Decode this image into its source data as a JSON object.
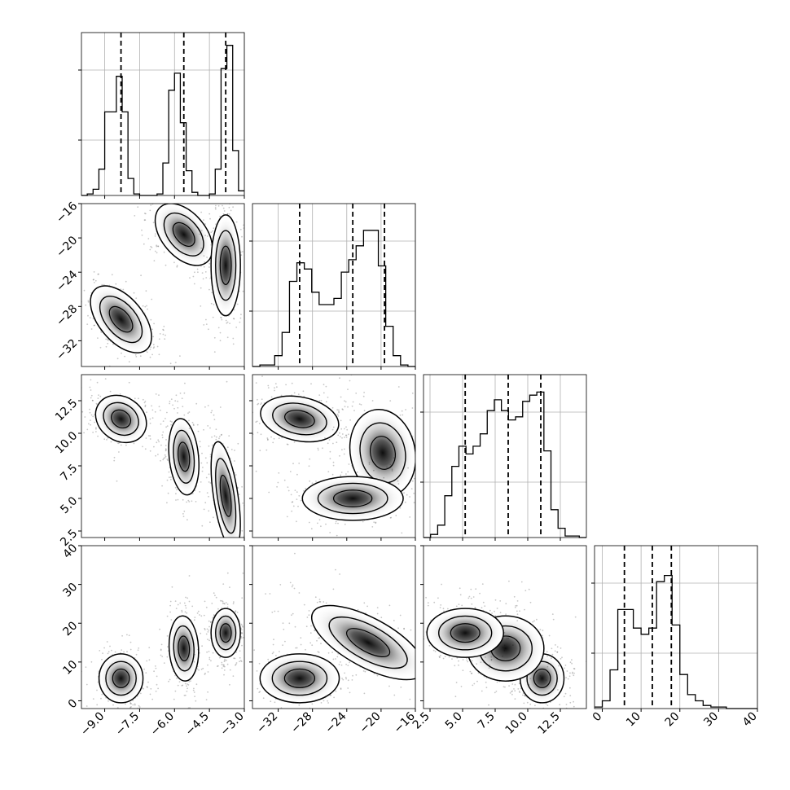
{
  "chart_data": {
    "type": "corner",
    "variables": [
      {
        "range": [
          -10,
          -3
        ],
        "ticks": [
          -9.0,
          -7.5,
          -6.0,
          -4.5,
          -3.0
        ],
        "tick_labels": [
          "−9.0",
          "−7.5",
          "−6.0",
          "−4.5",
          "−3.0"
        ],
        "quantiles": [
          -8.3,
          -5.6,
          -3.8
        ]
      },
      {
        "range": [
          -35,
          -16
        ],
        "ticks": [
          -32,
          -28,
          -24,
          -20,
          -16
        ],
        "tick_labels": [
          "−32",
          "−28",
          "−24",
          "−20",
          "−16"
        ],
        "quantiles": [
          -29.5,
          -23.3,
          -19.6
        ]
      },
      {
        "range": [
          2,
          14.5
        ],
        "ticks": [
          2.5,
          5.0,
          7.5,
          10.0,
          12.5
        ],
        "tick_labels": [
          "2.5",
          "5.0",
          "7.5",
          "10.0",
          "12.5"
        ],
        "quantiles": [
          5.2,
          8.5,
          11.0
        ]
      },
      {
        "range": [
          -2,
          40
        ],
        "ticks": [
          0,
          10,
          20,
          30,
          40
        ],
        "tick_labels": [
          "0",
          "10",
          "20",
          "30",
          "40"
        ],
        "quantiles": [
          5.7,
          12.9,
          17.8
        ]
      }
    ],
    "histograms": [
      {
        "var": 0,
        "edges_range": [
          -10,
          -3
        ],
        "counts": [
          0,
          0.01,
          0.04,
          0.17,
          0.54,
          0.54,
          0.77,
          0.54,
          0.11,
          0.01,
          0,
          0,
          0,
          0.01,
          0.21,
          0.68,
          0.79,
          0.47,
          0.16,
          0.02,
          0,
          0,
          0.01,
          0.17,
          0.82,
          0.97,
          0.29,
          0.03
        ],
        "max": 1.0
      },
      {
        "var": 1,
        "edges_range": [
          -35,
          -16
        ],
        "counts": [
          0,
          0.01,
          0.01,
          0.07,
          0.22,
          0.55,
          0.67,
          0.63,
          0.48,
          0.4,
          0.4,
          0.44,
          0.61,
          0.69,
          0.78,
          0.88,
          0.88,
          0.65,
          0.26,
          0.07,
          0.01,
          0
        ],
        "max": 1.0
      },
      {
        "var": 2,
        "edges_range": [
          2,
          14.5
        ],
        "counts": [
          0,
          0.02,
          0.08,
          0.27,
          0.46,
          0.59,
          0.54,
          0.59,
          0.67,
          0.82,
          0.89,
          0.82,
          0.76,
          0.78,
          0.88,
          0.92,
          0.94,
          0.56,
          0.18,
          0.06,
          0.01,
          0.01,
          0
        ],
        "max": 1.0
      },
      {
        "var": 3,
        "edges_range": [
          -2,
          40
        ],
        "counts": [
          0.01,
          0.05,
          0.25,
          0.64,
          0.64,
          0.52,
          0.48,
          0.52,
          0.82,
          0.86,
          0.54,
          0.22,
          0.09,
          0.05,
          0.02,
          0.01,
          0.01,
          0,
          0,
          0,
          0
        ],
        "max": 1.0
      }
    ],
    "hist_yticks": [
      0.34,
      0.77
    ],
    "clusters_2d": [
      {
        "row": 1,
        "col": 0,
        "blobs": [
          {
            "mx": -8.3,
            "my": -29.5,
            "sx": 0.45,
            "sy": 2.2,
            "rot": 0.7
          },
          {
            "mx": -5.6,
            "my": -19.6,
            "sx": 0.45,
            "sy": 2.0,
            "rot": 0.7
          },
          {
            "mx": -3.8,
            "my": -23.2,
            "sx": 0.3,
            "sy": 2.8,
            "rot": 0.0
          }
        ]
      },
      {
        "row": 2,
        "col": 0,
        "blobs": [
          {
            "mx": -8.3,
            "my": 11.1,
            "sx": 0.55,
            "sy": 0.8,
            "rot": -0.6
          },
          {
            "mx": -5.6,
            "my": 8.2,
            "sx": 0.3,
            "sy": 1.4,
            "rot": 0.1
          },
          {
            "mx": -3.8,
            "my": 5.2,
            "sx": 0.25,
            "sy": 2.0,
            "rot": 0.15
          }
        ]
      },
      {
        "row": 2,
        "col": 1,
        "blobs": [
          {
            "mx": -29.5,
            "my": 11.1,
            "sx": 2.2,
            "sy": 0.8,
            "rot": -0.2
          },
          {
            "mx": -19.8,
            "my": 8.5,
            "sx": 1.8,
            "sy": 1.6,
            "rot": 0.2
          },
          {
            "mx": -23.3,
            "my": 5.0,
            "sx": 2.8,
            "sy": 0.8,
            "rot": 0.0
          }
        ]
      },
      {
        "row": 3,
        "col": 0,
        "blobs": [
          {
            "mx": -8.3,
            "my": 5.8,
            "sx": 0.45,
            "sy": 3.0,
            "rot": 0.0
          },
          {
            "mx": -5.6,
            "my": 13.5,
            "sx": 0.3,
            "sy": 4.0,
            "rot": 0.05
          },
          {
            "mx": -3.8,
            "my": 17.5,
            "sx": 0.3,
            "sy": 3.0,
            "rot": 0.0
          }
        ]
      },
      {
        "row": 3,
        "col": 1,
        "blobs": [
          {
            "mx": -29.5,
            "my": 5.8,
            "sx": 2.2,
            "sy": 3.0,
            "rot": 0.0
          },
          {
            "mx": -21.5,
            "my": 15.0,
            "sx": 3.5,
            "sy": 3.0,
            "rot": -0.5
          }
        ]
      },
      {
        "row": 3,
        "col": 2,
        "blobs": [
          {
            "mx": 11.1,
            "my": 5.8,
            "sx": 0.8,
            "sy": 3.0,
            "rot": 0.0
          },
          {
            "mx": 8.3,
            "my": 13.5,
            "sx": 1.4,
            "sy": 4.0,
            "rot": 0.0
          },
          {
            "mx": 5.2,
            "my": 17.5,
            "sx": 1.4,
            "sy": 3.0,
            "rot": 0.0
          }
        ]
      }
    ],
    "grid": true,
    "title": "",
    "xlabel": "",
    "ylabel": ""
  }
}
